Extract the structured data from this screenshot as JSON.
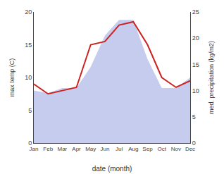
{
  "chart_data": {
    "type": "line",
    "xlabel": "date (month)",
    "ylabel": "max temp (C)",
    "y2label": "med. precipitation (kg/m2)",
    "categories": [
      "Jan",
      "Feb",
      "Mar",
      "Apr",
      "May",
      "Jun",
      "Jul",
      "Aug",
      "Sep",
      "Oct",
      "Nov",
      "Dec"
    ],
    "series": [
      {
        "type": "area",
        "axis": "y2",
        "color": "#c5ccee",
        "values": [
          10.0,
          9.5,
          10.5,
          10.5,
          14.5,
          20.5,
          23.5,
          23.5,
          16.0,
          10.5,
          10.5,
          12.5
        ]
      },
      {
        "type": "line",
        "color": "#cc2222",
        "values": [
          9.0,
          7.5,
          8.0,
          8.5,
          15.0,
          15.5,
          18.0,
          18.5,
          15.0,
          10.0,
          8.5,
          9.5
        ]
      }
    ],
    "ylim": [
      0,
      20
    ],
    "yticks": [
      0,
      5,
      10,
      15,
      20
    ],
    "y2lim": [
      0,
      25
    ],
    "y2ticks": [
      0,
      5,
      10,
      15,
      20,
      25
    ],
    "grid": false
  }
}
